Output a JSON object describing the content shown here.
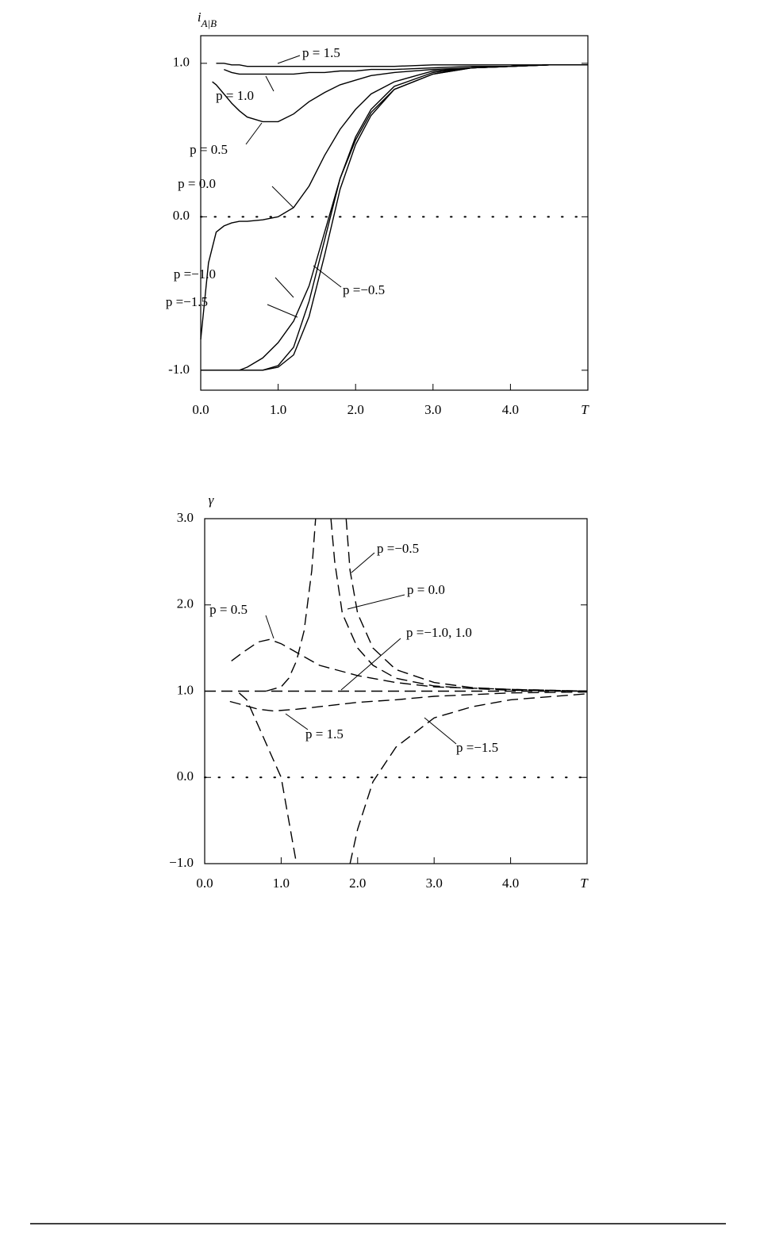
{
  "chart_data": [
    {
      "type": "line",
      "ylabel": "i",
      "ylabel_sub": "A|B",
      "xlabel": "T",
      "xlim": [
        0,
        5
      ],
      "ylim": [
        -1.13,
        1.18
      ],
      "xticks": [
        {
          "value": 0,
          "label": "0.0"
        },
        {
          "value": 1,
          "label": "1.0"
        },
        {
          "value": 2,
          "label": "2.0"
        },
        {
          "value": 3,
          "label": "3.0"
        },
        {
          "value": 4,
          "label": "4.0"
        }
      ],
      "yticks": [
        {
          "value": -1,
          "label": "-1.0"
        },
        {
          "value": 0,
          "label": "0.0"
        },
        {
          "value": 1,
          "label": "1.0"
        }
      ],
      "reference_line": 0,
      "line_style": "solid",
      "color": "#000000",
      "series": [
        {
          "name": "p = 1.5",
          "x": [
            0.2,
            0.3,
            0.4,
            0.5,
            0.6,
            0.8,
            1.0,
            1.2,
            1.4,
            1.6,
            1.8,
            2.0,
            2.2,
            2.5,
            3.0,
            3.5,
            4.0,
            4.5,
            5.0
          ],
          "values": [
            1.0,
            1.0,
            0.99,
            0.99,
            0.98,
            0.98,
            0.98,
            0.98,
            0.98,
            0.98,
            0.98,
            0.98,
            0.98,
            0.98,
            0.99,
            0.99,
            0.99,
            0.99,
            0.99
          ]
        },
        {
          "name": "p = 1.0",
          "x": [
            0.3,
            0.4,
            0.5,
            0.6,
            0.8,
            1.0,
            1.2,
            1.4,
            1.6,
            1.8,
            2.0,
            2.2,
            2.5,
            3.0,
            3.5,
            4.0,
            4.5,
            5.0
          ],
          "values": [
            0.96,
            0.94,
            0.93,
            0.93,
            0.93,
            0.93,
            0.93,
            0.94,
            0.94,
            0.95,
            0.95,
            0.96,
            0.96,
            0.97,
            0.98,
            0.98,
            0.99,
            0.99
          ]
        },
        {
          "name": "p = 0.5",
          "x": [
            0.15,
            0.2,
            0.3,
            0.4,
            0.5,
            0.6,
            0.8,
            1.0,
            1.2,
            1.4,
            1.6,
            1.8,
            2.0,
            2.2,
            2.5,
            3.0,
            3.5,
            4.0,
            4.5,
            5.0
          ],
          "values": [
            0.88,
            0.86,
            0.8,
            0.74,
            0.69,
            0.65,
            0.62,
            0.62,
            0.67,
            0.75,
            0.81,
            0.86,
            0.89,
            0.92,
            0.94,
            0.96,
            0.97,
            0.98,
            0.99,
            0.99
          ]
        },
        {
          "name": "p = 0.0",
          "x": [
            0.0,
            0.1,
            0.2,
            0.3,
            0.4,
            0.5,
            0.6,
            0.8,
            1.0,
            1.2,
            1.4,
            1.6,
            1.8,
            2.0,
            2.2,
            2.5,
            3.0,
            3.5,
            4.0,
            4.5,
            5.0
          ],
          "values": [
            -0.8,
            -0.3,
            -0.1,
            -0.06,
            -0.04,
            -0.03,
            -0.03,
            -0.02,
            0.0,
            0.06,
            0.2,
            0.4,
            0.57,
            0.7,
            0.8,
            0.88,
            0.95,
            0.97,
            0.98,
            0.99,
            0.99
          ]
        },
        {
          "name": "p =−0.5",
          "x": [
            0.5,
            0.6,
            0.8,
            1.0,
            1.2,
            1.4,
            1.6,
            1.8,
            2.0,
            2.2,
            2.5,
            3.0,
            3.5,
            4.0,
            4.5,
            5.0
          ],
          "values": [
            -1.0,
            -0.98,
            -0.92,
            -0.82,
            -0.68,
            -0.45,
            -0.1,
            0.25,
            0.5,
            0.68,
            0.83,
            0.93,
            0.97,
            0.98,
            0.99,
            0.99
          ]
        },
        {
          "name": "p =−1.0",
          "x": [
            0.0,
            0.4,
            0.8,
            1.0,
            1.2,
            1.4,
            1.6,
            1.8,
            2.0,
            2.2,
            2.5,
            3.0,
            3.5,
            4.0,
            4.5,
            5.0
          ],
          "values": [
            -1.0,
            -1.0,
            -1.0,
            -0.97,
            -0.85,
            -0.55,
            -0.15,
            0.25,
            0.52,
            0.7,
            0.85,
            0.94,
            0.97,
            0.98,
            0.99,
            0.99
          ]
        },
        {
          "name": "p =−1.5",
          "x": [
            0.0,
            0.4,
            0.8,
            1.0,
            1.2,
            1.4,
            1.6,
            1.8,
            2.0,
            2.2,
            2.5,
            3.0,
            3.5,
            4.0,
            4.5,
            5.0
          ],
          "values": [
            -1.0,
            -1.0,
            -1.0,
            -0.98,
            -0.9,
            -0.65,
            -0.25,
            0.18,
            0.47,
            0.66,
            0.83,
            0.93,
            0.97,
            0.98,
            0.99,
            0.99
          ]
        }
      ]
    },
    {
      "type": "line",
      "ylabel": "γ",
      "xlabel": "T",
      "xlim": [
        0,
        5
      ],
      "ylim": [
        -1,
        3
      ],
      "xticks": [
        {
          "value": 0,
          "label": "0.0"
        },
        {
          "value": 1,
          "label": "1.0"
        },
        {
          "value": 2,
          "label": "2.0"
        },
        {
          "value": 3,
          "label": "3.0"
        },
        {
          "value": 4,
          "label": "4.0"
        }
      ],
      "yticks": [
        {
          "value": -1,
          "label": "−1.0"
        },
        {
          "value": 0,
          "label": "0.0"
        },
        {
          "value": 1,
          "label": "1.0"
        },
        {
          "value": 2,
          "label": "2.0"
        },
        {
          "value": 3,
          "label": "3.0"
        }
      ],
      "reference_line": 0,
      "line_style": "dashed",
      "color": "#000000",
      "series": [
        {
          "name": "p =−0.5",
          "x": [
            1.85,
            1.9,
            2.0,
            2.2,
            2.5,
            3.0,
            3.5,
            4.0,
            5.0
          ],
          "values": [
            3.0,
            2.4,
            1.9,
            1.5,
            1.25,
            1.1,
            1.04,
            1.02,
            1.0
          ]
        },
        {
          "name": "p = 0.0",
          "x": [
            0.8,
            1.0,
            1.1,
            1.2,
            1.3,
            1.4,
            1.45,
            1.55,
            1.65,
            1.7,
            1.8,
            2.0,
            2.2,
            2.5,
            3.0,
            3.5,
            4.0,
            5.0
          ],
          "values": [
            1.0,
            1.05,
            1.15,
            1.35,
            1.7,
            2.4,
            3.0,
            null,
            3.0,
            2.5,
            1.9,
            1.5,
            1.3,
            1.15,
            1.06,
            1.03,
            1.01,
            1.0
          ]
        },
        {
          "name": "p = 0.5",
          "x": [
            0.35,
            0.5,
            0.7,
            0.85,
            1.0,
            1.2,
            1.5,
            2.0,
            2.5,
            3.0,
            4.0,
            5.0
          ],
          "values": [
            1.35,
            1.45,
            1.57,
            1.6,
            1.55,
            1.45,
            1.3,
            1.18,
            1.1,
            1.05,
            1.02,
            1.0
          ]
        },
        {
          "name": "p =−1.0, 1.0",
          "x": [
            0.0,
            5.0
          ],
          "values": [
            1.0,
            1.0
          ]
        },
        {
          "name": "p = 1.5",
          "x": [
            0.33,
            0.5,
            0.7,
            0.9,
            1.2,
            1.5,
            2.0,
            2.5,
            3.0,
            4.0,
            5.0
          ],
          "values": [
            0.88,
            0.84,
            0.79,
            0.77,
            0.79,
            0.82,
            0.87,
            0.9,
            0.94,
            0.98,
            0.99
          ]
        },
        {
          "name": "p =−1.5",
          "x": [
            0.45,
            0.55,
            0.7,
            0.85,
            1.0,
            1.1,
            1.2,
            1.5,
            1.9,
            2.0,
            2.2,
            2.5,
            3.0,
            3.5,
            4.0,
            5.0
          ],
          "values": [
            0.98,
            0.9,
            0.6,
            0.3,
            0.0,
            -0.5,
            -1.0,
            null,
            -1.0,
            -0.6,
            -0.05,
            0.35,
            0.69,
            0.82,
            0.9,
            0.97
          ]
        }
      ]
    }
  ]
}
